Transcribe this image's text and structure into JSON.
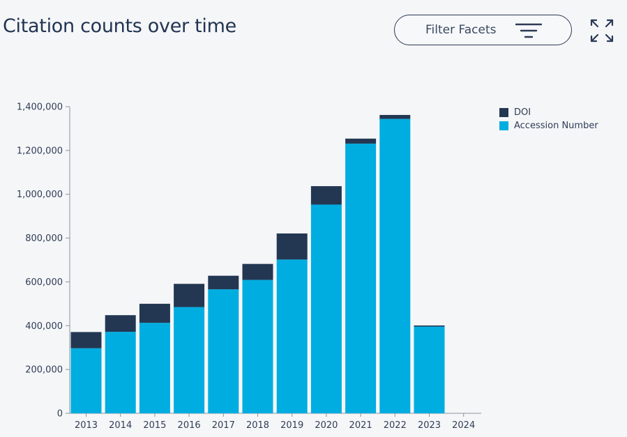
{
  "header": {
    "title": "Citation counts over time",
    "filter_label": "Filter Facets",
    "filter_icon": "filter-lines-icon",
    "expand_icon": "expand-arrows-icon"
  },
  "colors": {
    "doi": "#233753",
    "accession": "#00ade0",
    "axis": "#8a93a0",
    "text": "#2e3d55"
  },
  "chart_data": {
    "type": "bar",
    "stacked": true,
    "title": "",
    "xlabel": "",
    "ylabel": "",
    "categories": [
      "2013",
      "2014",
      "2015",
      "2016",
      "2017",
      "2018",
      "2019",
      "2020",
      "2021",
      "2022",
      "2023",
      "2024"
    ],
    "series": [
      {
        "name": "Accession Number",
        "values": [
          297000,
          372000,
          413000,
          485000,
          566000,
          609000,
          702000,
          953000,
          1231000,
          1344000,
          396000,
          0
        ]
      },
      {
        "name": "DOI",
        "values": [
          74000,
          76000,
          87000,
          106000,
          62000,
          73000,
          119000,
          84000,
          23000,
          18000,
          5000,
          0
        ]
      }
    ],
    "yticks": [
      "0",
      "200,000",
      "400,000",
      "600,000",
      "800,000",
      "1,000,000",
      "1,200,000",
      "1,400,000"
    ],
    "ylim": [
      0,
      1400000
    ],
    "legend": {
      "position": "top-right",
      "entries": [
        "DOI",
        "Accession Number"
      ]
    },
    "grid": false
  }
}
